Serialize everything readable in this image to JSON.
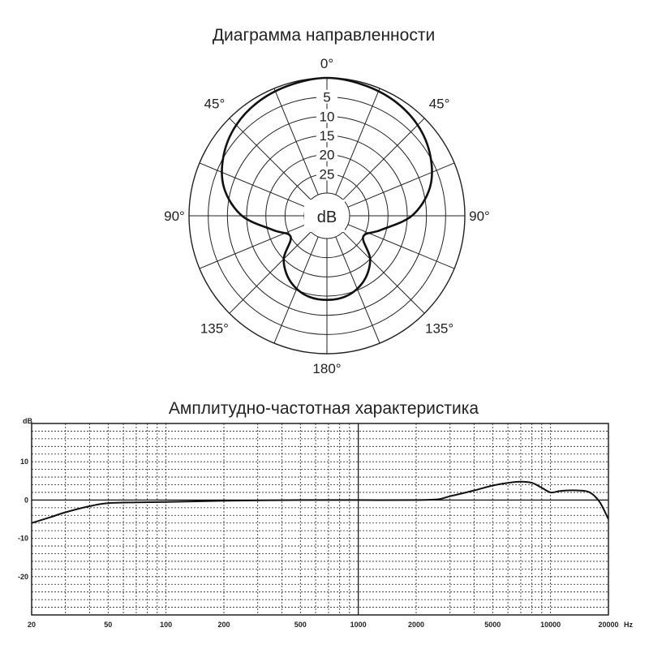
{
  "chart_data": [
    {
      "type": "polar",
      "title": "Диаграмма направленности",
      "center_label": "dB",
      "ring_labels": [
        "5",
        "10",
        "15",
        "20",
        "25"
      ],
      "angle_labels": [
        {
          "angle": 0,
          "text": "0°"
        },
        {
          "angle": 45,
          "text": "45°"
        },
        {
          "angle": 90,
          "text": "90°"
        },
        {
          "angle": 135,
          "text": "135°"
        },
        {
          "angle": 180,
          "text": "180°"
        },
        {
          "angle": 225,
          "text": "135°"
        },
        {
          "angle": 270,
          "text": "90°"
        },
        {
          "angle": 315,
          "text": "45°"
        }
      ],
      "series": [
        {
          "angles": [
            0,
            15,
            30,
            45,
            60,
            75,
            90,
            105,
            120,
            135,
            150,
            165,
            180,
            195,
            210,
            225,
            240,
            255,
            270,
            285,
            300,
            315,
            330,
            345
          ],
          "attenuation_db": [
            0,
            0.5,
            1.2,
            2.5,
            4.8,
            8.2,
            13.8,
            21.5,
            25,
            20,
            16.5,
            14.5,
            14,
            14.5,
            16.5,
            20,
            25,
            21.5,
            13.8,
            8.2,
            4.8,
            2.5,
            1.2,
            0.5
          ]
        }
      ]
    },
    {
      "type": "line",
      "title": "Амплитудно-частотная характеристика",
      "ylabel": "dB",
      "xlabel": "Hz",
      "xscale": "log",
      "xlim": [
        20,
        20000
      ],
      "ylim": [
        -30,
        20
      ],
      "x_ticks": [
        "20",
        "50",
        "100",
        "200",
        "500",
        "1000",
        "2000",
        "5000",
        "10000",
        "20000"
      ],
      "y_ticks": [
        "10",
        "0",
        "-10",
        "-20"
      ],
      "series": [
        {
          "x": [
            20,
            25,
            30,
            40,
            50,
            70,
            100,
            200,
            500,
            1000,
            2000,
            2600,
            3000,
            4000,
            5000,
            6000,
            7000,
            8000,
            9000,
            10000,
            11000,
            12000,
            14000,
            16000,
            18000,
            20000
          ],
          "y": [
            -6,
            -4.5,
            -3.2,
            -1.6,
            -0.8,
            -0.6,
            -0.5,
            -0.2,
            0,
            0,
            0,
            0.2,
            1,
            2.5,
            3.8,
            4.5,
            4.8,
            4.5,
            3.2,
            2,
            2.3,
            2.5,
            2.5,
            2,
            -0.5,
            -5
          ]
        }
      ]
    }
  ]
}
